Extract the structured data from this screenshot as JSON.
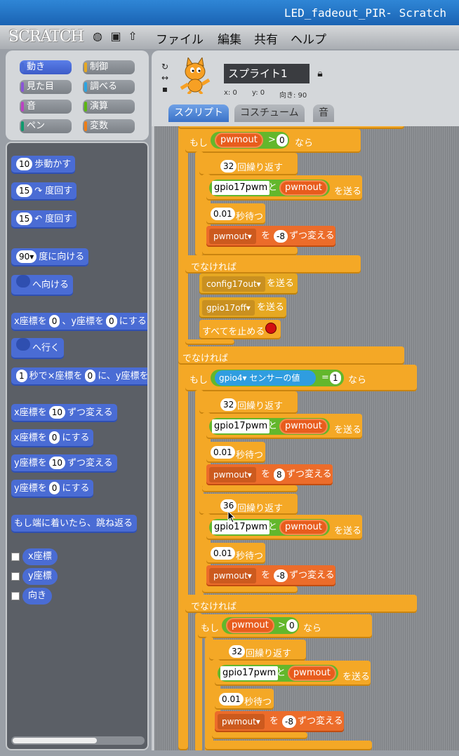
{
  "window": {
    "title": "LED_fadeout_PIR- Scratch"
  },
  "menubar": {
    "logo": "SCRATCH",
    "items": [
      "ファイル",
      "編集",
      "共有",
      "ヘルプ"
    ]
  },
  "categories": [
    {
      "label": "動き",
      "color": "#4a6cd4"
    },
    {
      "label": "制御",
      "color": "#e6a822"
    },
    {
      "label": "見た目",
      "color": "#8a55d7"
    },
    {
      "label": "調べる",
      "color": "#2ca5e2"
    },
    {
      "label": "音",
      "color": "#bb42c3"
    },
    {
      "label": "演算",
      "color": "#5cb712"
    },
    {
      "label": "ペン",
      "color": "#0e9a6c"
    },
    {
      "label": "変数",
      "color": "#ee7d16"
    }
  ],
  "motion_blocks": {
    "move": {
      "num": "10",
      "text": "歩動かす"
    },
    "turn_right": {
      "num": "15",
      "text": "↷ 度回す"
    },
    "turn_left": {
      "num": "15",
      "text": "↶ 度回す"
    },
    "point_dir": {
      "num": "90▾",
      "text": "度に向ける"
    },
    "point_toward": {
      "text": "へ向ける"
    },
    "goto_xy": {
      "a": "x座標を",
      "n1": "0",
      "b": "、y座標を",
      "n2": "0",
      "c": "にする"
    },
    "goto": {
      "text": "へ行く"
    },
    "glide": {
      "n1": "1",
      "a": "秒で×座標を",
      "n2": "0",
      "b": "に、y座標を"
    },
    "change_x": {
      "a": "x座標を",
      "num": "10",
      "b": "ずつ変える"
    },
    "set_x": {
      "a": "x座標を",
      "num": "0",
      "b": "にする"
    },
    "change_y": {
      "a": "y座標を",
      "num": "10",
      "b": "ずつ変える"
    },
    "set_y": {
      "a": "y座標を",
      "num": "0",
      "b": "にする"
    },
    "bounce": "もし端に着いたら、跳ね返る",
    "reporters": [
      "x座標",
      "y座標",
      "向き"
    ]
  },
  "sprite": {
    "name": "スプライト1",
    "x_label": "x: 0",
    "y_label": "y: 0",
    "dir_label": "向き: 90"
  },
  "tabs": [
    "スクリプト",
    "コスチューム",
    "音"
  ],
  "script": {
    "kw_if": "もし",
    "kw_then": "なら",
    "kw_else": "でなければ",
    "var_pwmout": "pwmout",
    "gt": ">",
    "zero": "0",
    "repeat32": "32",
    "repeat36": "36",
    "repeat_label": "回繰り返す",
    "gpio17pwm": "gpio17pwm",
    "join": "と",
    "send": "を送る",
    "wait_val": "0.01",
    "wait_label": "秒待つ",
    "var_drop": "pwmout▾",
    "change_a": "を",
    "change_b": "ずつ変える",
    "minus8": "-8",
    "plus8": "8",
    "config17out": "config17out▾",
    "gpio17off": "gpio17off▾",
    "stop_all": "すべてを止める",
    "sensor_drop": "gpio4▾",
    "sensor_label": "センサーの値",
    "eq": "=",
    "one": "1"
  }
}
